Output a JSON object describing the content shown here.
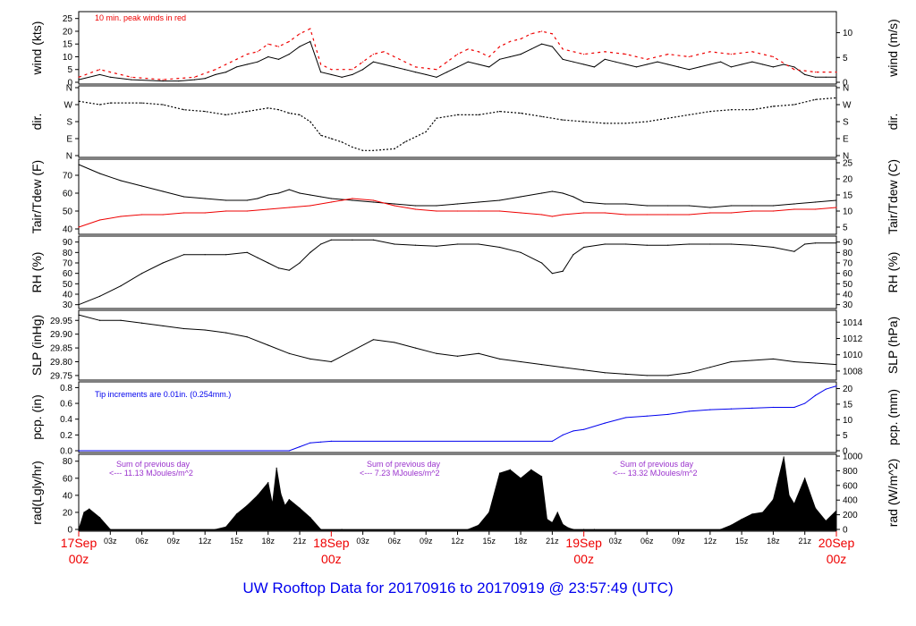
{
  "caption": "UW Rooftop Data for 20170916  to  20170919 @ 23:57:49  (UTC)",
  "colors": {
    "text": "#000000",
    "red": "#ee0000",
    "blue": "#0000ee",
    "purple": "#9a32cd"
  },
  "time_axis": {
    "tick_labels": [
      "03z",
      "06z",
      "09z",
      "12z",
      "15z",
      "18z",
      "21z",
      "03z",
      "06z",
      "09z",
      "12z",
      "15z",
      "18z",
      "21z",
      "03z",
      "06z",
      "09z",
      "12z",
      "15z",
      "18z",
      "21z"
    ],
    "day_labels": [
      {
        "day": "17Sep",
        "hour": "00z"
      },
      {
        "day": "18Sep",
        "hour": "00z"
      },
      {
        "day": "19Sep",
        "hour": "00z"
      },
      {
        "day": "20Sep",
        "hour": "00z"
      }
    ]
  },
  "panels": {
    "wind": {
      "ylabel_left": "wind (kts)",
      "ylabel_right": "wind (m/s)",
      "left_ticks": [
        "0",
        "5",
        "10",
        "15",
        "20",
        "25"
      ],
      "right_ticks": [
        "0",
        "5",
        "10"
      ],
      "note": "10 min. peak winds in red"
    },
    "dir": {
      "ylabel_left": "dir.",
      "ylabel_right": "dir.",
      "ticks": [
        "N",
        "E",
        "S",
        "W",
        "N"
      ]
    },
    "temp": {
      "ylabel_left": "Tair/Tdew (F)",
      "ylabel_right": "Tair/Tdew (C)",
      "left_ticks": [
        "40",
        "50",
        "60",
        "70"
      ],
      "right_ticks": [
        "5",
        "10",
        "15",
        "20",
        "25"
      ]
    },
    "rh": {
      "ylabel_left": "RH (%)",
      "ylabel_right": "RH (%)",
      "ticks": [
        "30",
        "40",
        "50",
        "60",
        "70",
        "80",
        "90"
      ]
    },
    "slp": {
      "ylabel_left": "SLP (inHg)",
      "ylabel_right": "SLP (hPa)",
      "left_ticks": [
        "29.75",
        "29.80",
        "29.85",
        "29.90",
        "29.95"
      ],
      "right_ticks": [
        "1008",
        "1010",
        "1012",
        "1014"
      ]
    },
    "pcp": {
      "ylabel_left": "pcp. (in)",
      "ylabel_right": "pcp. (mm)",
      "left_ticks": [
        "0.0",
        "0.2",
        "0.4",
        "0.6",
        "0.8"
      ],
      "right_ticks": [
        "0",
        "5",
        "10",
        "15",
        "20"
      ],
      "note": "Tip increments are 0.01in. (0.254mm.)"
    },
    "rad": {
      "ylabel_left": "rad(Lgly/hr)",
      "ylabel_right": "rad (W/m^2)",
      "left_ticks": [
        "0",
        "20",
        "40",
        "60",
        "80"
      ],
      "right_ticks": [
        "0",
        "200",
        "400",
        "600",
        "800",
        "1000"
      ],
      "sum_label": "Sum of previous day",
      "sums": [
        "<--- 11.13 MJoules/m^2",
        "<--- 7.23 MJoules/m^2",
        "<--- 13.32 MJoules/m^2"
      ]
    }
  },
  "chart_data": {
    "type": "line",
    "x_unit": "hours since 17Sep 00z",
    "xlim": [
      0,
      72
    ],
    "series": [
      {
        "name": "wind",
        "y_unit": "kts",
        "ylim": [
          0,
          27
        ],
        "x": [
          0,
          2,
          3,
          5,
          8,
          9.5,
          11,
          12,
          13,
          14,
          15,
          16,
          17,
          18,
          19,
          20,
          21,
          22,
          23,
          24,
          25,
          26,
          27,
          28,
          29,
          30,
          31,
          32,
          33,
          34,
          35,
          36,
          37,
          38,
          39,
          40,
          41,
          42,
          43,
          44,
          45,
          46,
          47,
          48,
          49,
          50,
          51,
          52,
          53,
          54,
          55,
          56,
          57,
          58,
          59,
          60,
          61,
          62,
          63,
          64,
          65,
          66,
          67,
          68,
          69,
          70,
          71,
          72
        ],
        "y": [
          1,
          3,
          2,
          1,
          0.5,
          0.5,
          1,
          1.5,
          3,
          4,
          6,
          7,
          8,
          10,
          9,
          11,
          14,
          16,
          4,
          3,
          2,
          3,
          5,
          8,
          7,
          6,
          5,
          4,
          3,
          2,
          4,
          6,
          8,
          7,
          6,
          9,
          10,
          11,
          13,
          15,
          14,
          9,
          8,
          7,
          6,
          9,
          8,
          7,
          6,
          7,
          8,
          7,
          6,
          5,
          6,
          7,
          8,
          6,
          7,
          8,
          7,
          6,
          7,
          6,
          3,
          2,
          2,
          2
        ]
      },
      {
        "name": "peak wind",
        "y_unit": "kts",
        "x": [
          0,
          2,
          3,
          5,
          8,
          11,
          13,
          14,
          15,
          16,
          17,
          18,
          19,
          20,
          21,
          22,
          23,
          24,
          26,
          27,
          28,
          29,
          30,
          32,
          34,
          35,
          36,
          37,
          38,
          39,
          40,
          41,
          42,
          43,
          44,
          45,
          46,
          48,
          50,
          52,
          54,
          56,
          58,
          60,
          62,
          64,
          66,
          68,
          70,
          72
        ],
        "y": [
          2,
          5,
          4,
          2,
          1,
          2,
          5,
          7,
          9,
          11,
          12,
          15,
          14,
          16,
          19,
          21,
          7,
          5,
          5,
          8,
          11,
          12,
          10,
          6,
          5,
          8,
          11,
          13,
          12,
          10,
          14,
          16,
          17,
          19,
          20,
          19,
          13,
          11,
          12,
          11,
          9,
          11,
          10,
          12,
          11,
          12,
          10,
          5,
          4,
          4
        ]
      },
      {
        "name": "direction",
        "y_unit": "N-E-S-W-N",
        "ylim": [
          0,
          4
        ],
        "x": [
          0,
          2,
          3,
          6,
          8,
          10,
          12,
          14,
          16,
          18,
          19,
          20,
          21,
          22,
          23,
          24,
          25,
          26,
          27,
          28,
          30,
          31,
          33,
          34,
          36,
          38,
          40,
          42,
          44,
          46,
          48,
          50,
          52,
          54,
          56,
          58,
          60,
          62,
          64,
          66,
          68,
          70,
          72
        ],
        "y": [
          3.2,
          3,
          3.1,
          3.1,
          3,
          2.7,
          2.6,
          2.4,
          2.6,
          2.8,
          2.7,
          2.5,
          2.4,
          2,
          1.2,
          1,
          0.8,
          0.5,
          0.3,
          0.3,
          0.4,
          0.8,
          1.4,
          2.2,
          2.4,
          2.4,
          2.6,
          2.5,
          2.3,
          2.1,
          2,
          1.9,
          1.9,
          2,
          2.2,
          2.4,
          2.6,
          2.7,
          2.7,
          2.9,
          3,
          3.3,
          3.4
        ]
      },
      {
        "name": "air temperature",
        "y_unit": "F",
        "ylim": [
          38,
          78
        ],
        "x": [
          0,
          2,
          4,
          6,
          8,
          10,
          12,
          14,
          16,
          17,
          18,
          19,
          20,
          21,
          22,
          23,
          24,
          26,
          28,
          30,
          32,
          34,
          36,
          38,
          40,
          42,
          44,
          45,
          46,
          47,
          48,
          50,
          52,
          54,
          56,
          58,
          60,
          62,
          64,
          66,
          68,
          70,
          72
        ],
        "y": [
          76,
          71,
          67,
          64,
          61,
          58,
          57,
          56,
          56,
          57,
          59,
          60,
          62,
          60,
          59,
          58,
          57,
          56,
          55,
          54,
          53,
          53,
          54,
          55,
          56,
          58,
          60,
          61,
          60,
          58,
          55,
          54,
          54,
          53,
          53,
          53,
          52,
          53,
          53,
          53,
          54,
          55,
          56
        ]
      },
      {
        "name": "dewpoint",
        "y_unit": "F",
        "x": [
          0,
          2,
          4,
          6,
          8,
          10,
          12,
          14,
          16,
          18,
          20,
          22,
          24,
          26,
          28,
          30,
          32,
          34,
          36,
          38,
          40,
          42,
          44,
          45,
          46,
          48,
          50,
          52,
          54,
          56,
          58,
          60,
          62,
          64,
          66,
          68,
          70,
          72
        ],
        "y": [
          41,
          45,
          47,
          48,
          48,
          49,
          49,
          50,
          50,
          51,
          52,
          53,
          55,
          57,
          56,
          53,
          51,
          50,
          50,
          50,
          50,
          49,
          48,
          47,
          48,
          49,
          49,
          48,
          48,
          48,
          48,
          49,
          49,
          50,
          50,
          51,
          51,
          52
        ]
      },
      {
        "name": "RH",
        "y_unit": "%",
        "ylim": [
          28,
          94
        ],
        "x": [
          0,
          2,
          4,
          6,
          8,
          10,
          12,
          14,
          16,
          17,
          18,
          19,
          20,
          21,
          22,
          23,
          24,
          26,
          28,
          30,
          32,
          34,
          36,
          38,
          40,
          42,
          44,
          45,
          46,
          47,
          48,
          50,
          52,
          54,
          56,
          58,
          60,
          62,
          64,
          66,
          68,
          69,
          70,
          72
        ],
        "y": [
          30,
          38,
          48,
          60,
          70,
          78,
          78,
          78,
          80,
          75,
          70,
          65,
          63,
          70,
          80,
          88,
          92,
          92,
          92,
          88,
          87,
          86,
          88,
          88,
          85,
          80,
          70,
          60,
          62,
          78,
          85,
          88,
          88,
          87,
          87,
          88,
          88,
          88,
          87,
          85,
          81,
          88,
          89,
          89
        ]
      },
      {
        "name": "SLP",
        "y_unit": "inHg",
        "ylim": [
          29.74,
          29.98
        ],
        "x": [
          0,
          2,
          4,
          6,
          8,
          10,
          12,
          14,
          16,
          18,
          20,
          22,
          24,
          26,
          28,
          30,
          32,
          34,
          36,
          38,
          40,
          42,
          44,
          46,
          48,
          50,
          52,
          54,
          56,
          58,
          60,
          62,
          64,
          66,
          68,
          70,
          72
        ],
        "y": [
          29.97,
          29.95,
          29.95,
          29.94,
          29.93,
          29.92,
          29.915,
          29.905,
          29.89,
          29.86,
          29.83,
          29.81,
          29.8,
          29.84,
          29.88,
          29.87,
          29.85,
          29.83,
          29.82,
          29.83,
          29.81,
          29.8,
          29.79,
          29.78,
          29.77,
          29.76,
          29.755,
          29.75,
          29.75,
          29.76,
          29.78,
          29.8,
          29.805,
          29.81,
          29.8,
          29.795,
          29.79
        ]
      },
      {
        "name": "precipitation",
        "y_unit": "in",
        "ylim": [
          0,
          0.85
        ],
        "x": [
          0,
          20,
          21,
          22,
          23,
          24,
          45,
          46,
          47,
          48,
          50,
          52,
          54,
          56,
          58,
          60,
          62,
          64,
          66,
          68,
          69,
          70,
          71,
          72
        ],
        "y": [
          0,
          0,
          0.05,
          0.1,
          0.11,
          0.12,
          0.12,
          0.2,
          0.25,
          0.27,
          0.35,
          0.42,
          0.44,
          0.46,
          0.5,
          0.52,
          0.53,
          0.54,
          0.55,
          0.55,
          0.6,
          0.7,
          0.78,
          0.82
        ]
      },
      {
        "name": "solar radiation",
        "y_unit": "Lgly/hr",
        "ylim": [
          0,
          86
        ],
        "x": [
          0,
          0.5,
          1,
          2,
          3,
          13,
          14,
          15,
          16,
          17,
          18,
          18.4,
          18.8,
          19.2,
          19.6,
          20,
          21,
          22,
          23,
          25,
          37,
          38,
          39,
          40,
          41,
          42,
          43,
          44,
          44.5,
          45,
          45.5,
          46,
          46.5,
          47,
          48,
          49,
          61,
          62,
          63,
          64,
          65,
          66,
          66.5,
          67,
          67.5,
          68,
          69,
          70,
          71,
          72
        ],
        "y": [
          0,
          20,
          24,
          14,
          0,
          0,
          3,
          18,
          28,
          40,
          55,
          30,
          72,
          42,
          28,
          35,
          25,
          14,
          0,
          0,
          0,
          5,
          20,
          66,
          70,
          60,
          70,
          62,
          12,
          8,
          20,
          6,
          2,
          0,
          0,
          0,
          0,
          5,
          12,
          18,
          20,
          35,
          60,
          85,
          40,
          30,
          60,
          25,
          10,
          22
        ]
      }
    ]
  }
}
